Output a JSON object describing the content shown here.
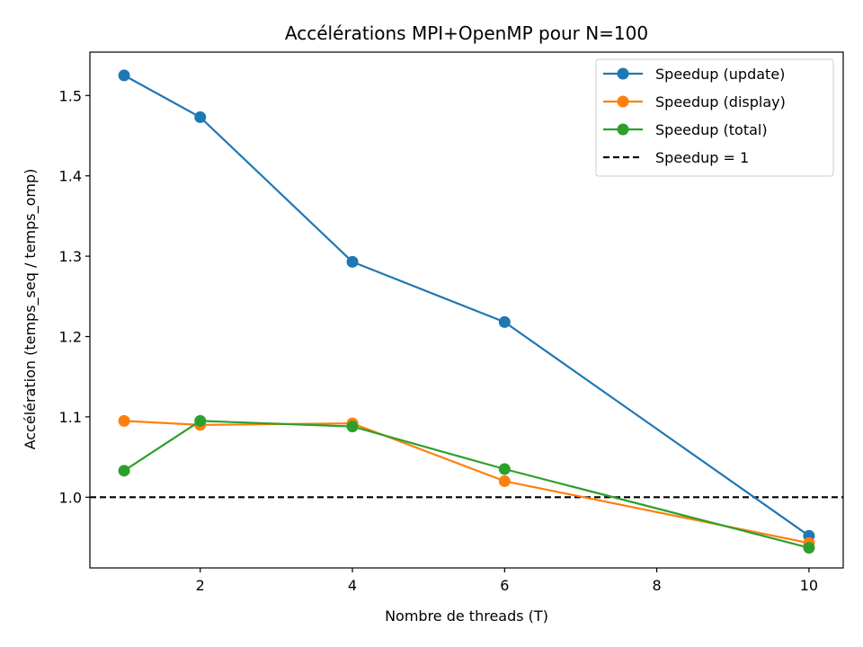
{
  "chart_data": {
    "type": "line",
    "title": "Accélérations MPI+OpenMP pour N=100",
    "xlabel": "Nombre de threads (T)",
    "ylabel": "Accélération (temps_seq / temps_omp)",
    "x": [
      1,
      2,
      4,
      6,
      10
    ],
    "xlim": [
      0.55,
      10.45
    ],
    "ylim": [
      0.912,
      1.554
    ],
    "xticks": [
      2,
      4,
      6,
      8,
      10
    ],
    "yticks": [
      1.0,
      1.1,
      1.2,
      1.3,
      1.4,
      1.5
    ],
    "series": [
      {
        "name": "Speedup (update)",
        "color": "#1f77b4",
        "marker": "circle",
        "values": [
          1.525,
          1.473,
          1.293,
          1.218,
          0.952
        ]
      },
      {
        "name": "Speedup (display)",
        "color": "#ff7f0e",
        "marker": "circle",
        "values": [
          1.095,
          1.09,
          1.092,
          1.02,
          0.943
        ]
      },
      {
        "name": "Speedup (total)",
        "color": "#2ca02c",
        "marker": "circle",
        "values": [
          1.033,
          1.095,
          1.088,
          1.035,
          0.937
        ]
      }
    ],
    "reference_line": {
      "name": "Speedup = 1",
      "value": 1.0,
      "color": "#000000",
      "style": "dashed"
    },
    "legend": "top-right",
    "grid": false
  }
}
